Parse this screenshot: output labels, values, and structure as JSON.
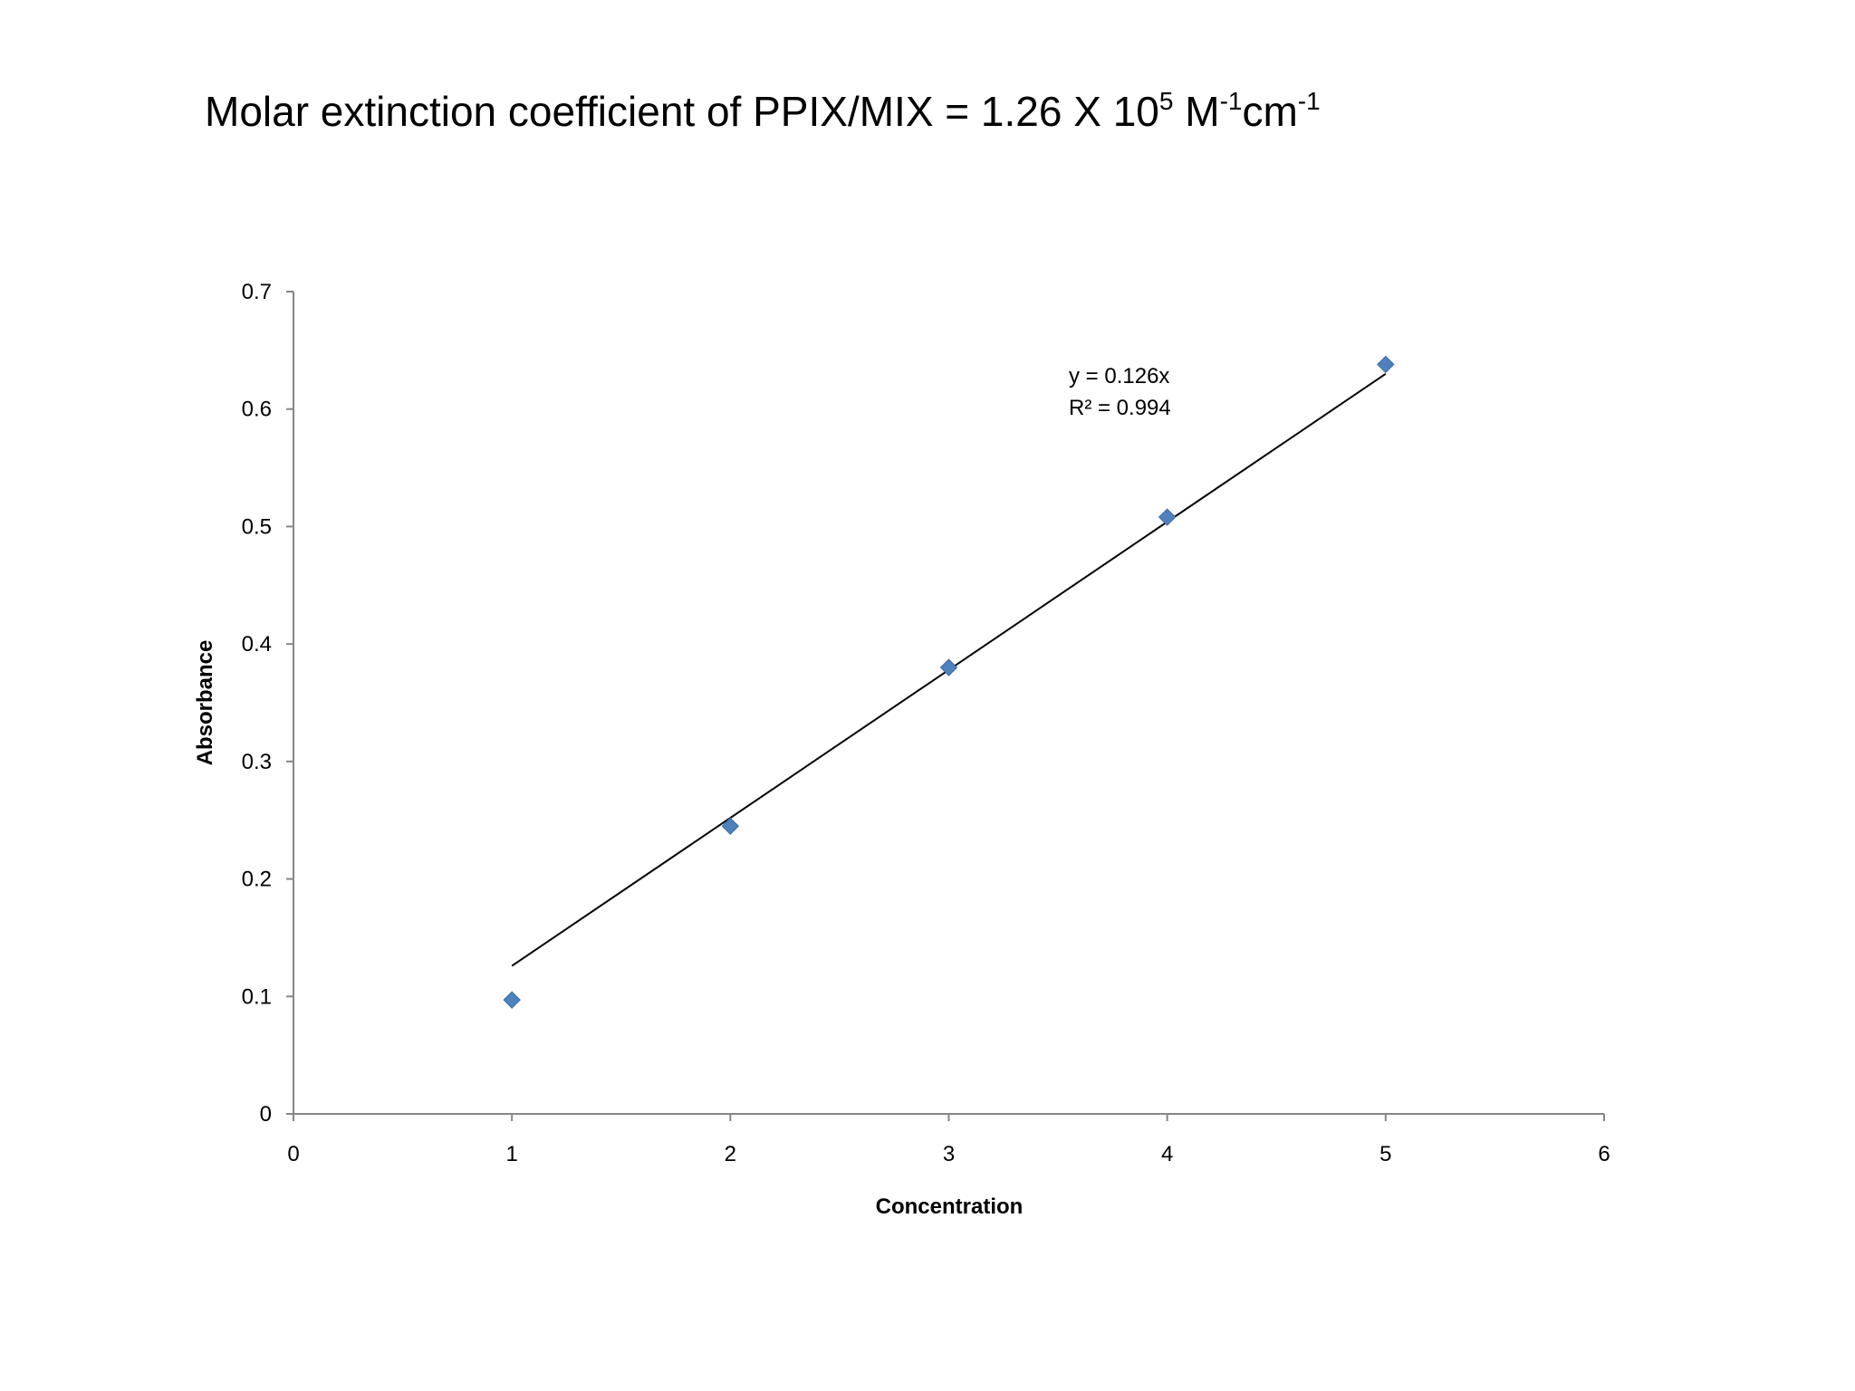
{
  "title": {
    "main": "Molar extinction coefficient of PPIX/MIX = 1.26 X 10",
    "exp_base": "5",
    "unit_m": " M",
    "exp_m": "-1",
    "unit_cm": "cm",
    "exp_cm": "-1"
  },
  "chart_data": {
    "type": "scatter",
    "title": "Molar extinction coefficient of PPIX/MIX = 1.26 X 10^5 M^-1cm^-1",
    "xlabel": "Concentration",
    "ylabel": "Absorbance",
    "xlim": [
      0,
      6
    ],
    "ylim": [
      0,
      0.7
    ],
    "x_ticks": [
      "0",
      "1",
      "2",
      "3",
      "4",
      "5",
      "6"
    ],
    "y_ticks": [
      "0",
      "0.1",
      "0.2",
      "0.3",
      "0.4",
      "0.5",
      "0.6",
      "0.7"
    ],
    "grid": false,
    "legend": false,
    "marker": "diamond",
    "marker_color": "#4F81BD",
    "trendline_color": "#000000",
    "series": [
      {
        "x": [
          1,
          2,
          3,
          4,
          5
        ],
        "y": [
          0.097,
          0.245,
          0.38,
          0.508,
          0.638
        ]
      }
    ],
    "trendline": {
      "type": "linear-through-origin",
      "slope": 0.126,
      "x_range": [
        1,
        5
      ],
      "equation": "y = 0.126x",
      "r_squared": "R² = 0.994"
    }
  }
}
